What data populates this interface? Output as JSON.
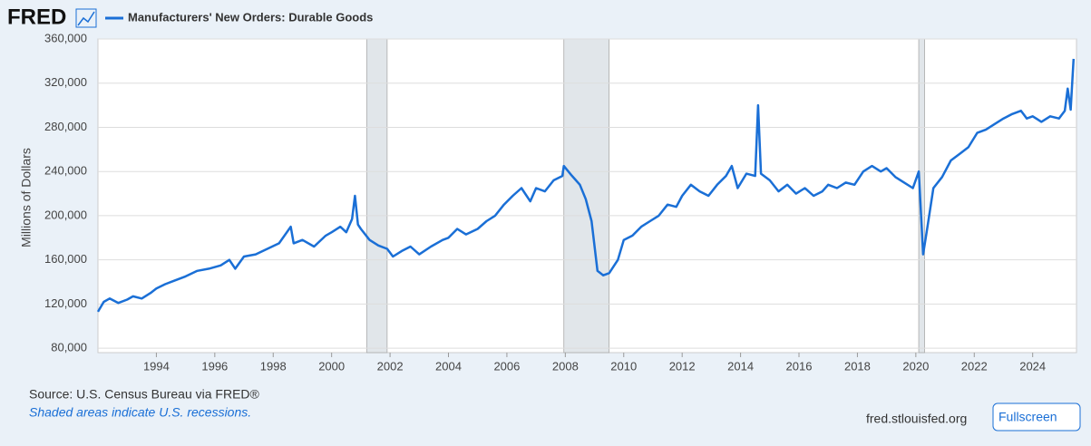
{
  "logo": "FRED",
  "source": "Source: U.S. Census Bureau via FRED®",
  "note": "Shaded areas indicate U.S. recessions.",
  "site": "fred.stlouisfed.org",
  "button": "Fullscreen",
  "chart_data": {
    "type": "line",
    "y_label": "Millions of Dollars",
    "xlim": [
      1992.0,
      2025.5
    ],
    "xticks": [
      1994,
      1996,
      1998,
      2000,
      2002,
      2004,
      2006,
      2008,
      2010,
      2012,
      2014,
      2016,
      2018,
      2020,
      2022,
      2024
    ],
    "ylim": [
      76000,
      360000
    ],
    "yticks": [
      {
        "value": 80000,
        "label": "80,000"
      },
      {
        "value": 120000,
        "label": "120,000"
      },
      {
        "value": 160000,
        "label": "160,000"
      },
      {
        "value": 200000,
        "label": "200,000"
      },
      {
        "value": 240000,
        "label": "240,000"
      },
      {
        "value": 280000,
        "label": "280,000"
      },
      {
        "value": 320000,
        "label": "320,000"
      },
      {
        "value": 360000,
        "label": "360,000"
      }
    ],
    "grid": true,
    "recessions": [
      [
        2001.2,
        2001.9
      ],
      [
        2007.95,
        2009.5
      ],
      [
        2020.1,
        2020.3
      ]
    ],
    "recession_color": "#e1e6ea",
    "x": [
      1992.0,
      1992.2,
      1992.4,
      1992.7,
      1993.0,
      1993.2,
      1993.5,
      1993.8,
      1994.0,
      1994.3,
      1994.6,
      1995.0,
      1995.4,
      1995.8,
      1996.2,
      1996.5,
      1996.7,
      1997.0,
      1997.4,
      1997.8,
      1998.2,
      1998.6,
      1998.7,
      1999.0,
      1999.4,
      1999.8,
      2000.0,
      2000.3,
      2000.5,
      2000.7,
      2000.8,
      2000.9,
      2001.0,
      2001.3,
      2001.6,
      2001.9,
      2002.1,
      2002.4,
      2002.7,
      2003.0,
      2003.4,
      2003.8,
      2004.0,
      2004.3,
      2004.6,
      2005.0,
      2005.3,
      2005.6,
      2005.9,
      2006.2,
      2006.5,
      2006.8,
      2007.0,
      2007.3,
      2007.6,
      2007.9,
      2007.95,
      2008.2,
      2008.5,
      2008.7,
      2008.9,
      2009.1,
      2009.3,
      2009.5,
      2009.8,
      2010.0,
      2010.3,
      2010.6,
      2010.9,
      2011.2,
      2011.5,
      2011.8,
      2012.0,
      2012.3,
      2012.6,
      2012.9,
      2013.2,
      2013.5,
      2013.7,
      2013.9,
      2014.2,
      2014.5,
      2014.6,
      2014.7,
      2015.0,
      2015.3,
      2015.6,
      2015.9,
      2016.2,
      2016.5,
      2016.8,
      2017.0,
      2017.3,
      2017.6,
      2017.9,
      2018.2,
      2018.5,
      2018.8,
      2019.0,
      2019.3,
      2019.6,
      2019.9,
      2020.1,
      2020.25,
      2020.4,
      2020.6,
      2020.9,
      2021.2,
      2021.5,
      2021.8,
      2022.1,
      2022.4,
      2022.7,
      2023.0,
      2023.3,
      2023.6,
      2023.8,
      2024.0,
      2024.3,
      2024.6,
      2024.9,
      2025.1,
      2025.2,
      2025.3,
      2025.4
    ],
    "series": [
      {
        "name": "Manufacturers' New Orders: Durable Goods",
        "color": "#1a6fd6",
        "values": [
          113000,
          122000,
          125000,
          121000,
          124000,
          127000,
          125000,
          130000,
          134000,
          138000,
          141000,
          145000,
          150000,
          152000,
          155000,
          160000,
          152000,
          163000,
          165000,
          170000,
          175000,
          190000,
          175000,
          178000,
          172000,
          182000,
          185000,
          190000,
          185000,
          197000,
          218000,
          192000,
          188000,
          178000,
          173000,
          170000,
          163000,
          168000,
          172000,
          165000,
          172000,
          178000,
          180000,
          188000,
          183000,
          188000,
          195000,
          200000,
          210000,
          218000,
          225000,
          213000,
          225000,
          222000,
          232000,
          236000,
          245000,
          237000,
          228000,
          215000,
          195000,
          150000,
          146000,
          148000,
          160000,
          178000,
          182000,
          190000,
          195000,
          200000,
          210000,
          208000,
          218000,
          228000,
          222000,
          218000,
          228000,
          236000,
          245000,
          225000,
          238000,
          236000,
          300000,
          238000,
          232000,
          222000,
          228000,
          220000,
          225000,
          218000,
          222000,
          228000,
          225000,
          230000,
          228000,
          240000,
          245000,
          240000,
          243000,
          235000,
          230000,
          225000,
          240000,
          165000,
          190000,
          225000,
          235000,
          250000,
          256000,
          262000,
          275000,
          278000,
          283000,
          288000,
          292000,
          295000,
          288000,
          290000,
          285000,
          290000,
          288000,
          295000,
          315000,
          296000,
          342000
        ]
      }
    ]
  }
}
